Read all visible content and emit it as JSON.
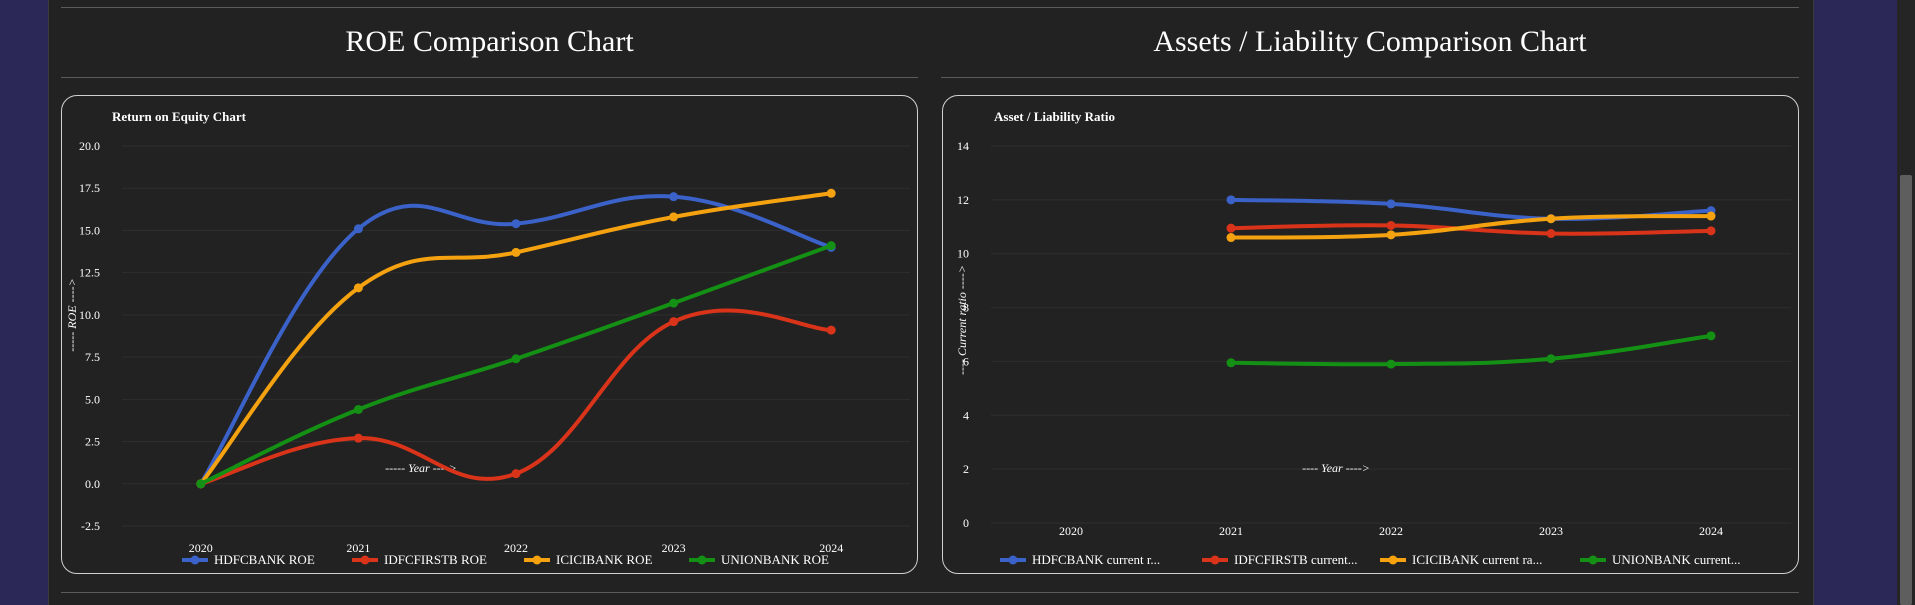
{
  "sections": [
    {
      "heading": "ROE Comparison Chart"
    },
    {
      "heading": "Assets / Liability Comparison Chart"
    }
  ],
  "chart_data": [
    {
      "type": "line",
      "title": "Return on Equity Chart",
      "xlabel": "----- Year ---->",
      "ylabel": "----- ROE ---->",
      "x": [
        "2020",
        "2021",
        "2022",
        "2023",
        "2024"
      ],
      "ylim": [
        -2.5,
        20
      ],
      "yticks": [
        "20.0",
        "17.5",
        "15.0",
        "12.5",
        "10.0",
        "7.5",
        "5.0",
        "2.5",
        "0.0",
        "-2.5"
      ],
      "grid": true,
      "legend": "bottom",
      "series": [
        {
          "name": "HDFCBANK ROE",
          "color": "#3a62c9",
          "values": [
            0,
            15.1,
            15.4,
            17.0,
            14.0
          ]
        },
        {
          "name": "IDFCFIRSTB ROE",
          "color": "#d9341a",
          "values": [
            0,
            2.7,
            0.6,
            9.6,
            9.1
          ]
        },
        {
          "name": "ICICIBANK ROE",
          "color": "#f5a211",
          "values": [
            0,
            11.6,
            13.7,
            15.8,
            17.2
          ]
        },
        {
          "name": "UNIONBANK ROE",
          "color": "#149014",
          "values": [
            0,
            4.4,
            7.4,
            10.7,
            14.1
          ]
        }
      ]
    },
    {
      "type": "line",
      "title": "Asset / Liability Ratio",
      "xlabel": "---- Year ---->",
      "ylabel": "---- Current ratio ---->",
      "x": [
        "2020",
        "2021",
        "2022",
        "2023",
        "2024"
      ],
      "ylim": [
        0,
        14
      ],
      "yticks": [
        "14",
        "12",
        "10",
        "8",
        "6",
        "4",
        "2",
        "0"
      ],
      "grid": true,
      "legend": "bottom",
      "series": [
        {
          "name": "HDFCBANK current r...",
          "color": "#3a62c9",
          "values": [
            null,
            12.0,
            11.85,
            11.3,
            11.6
          ]
        },
        {
          "name": "IDFCFIRSTB current...",
          "color": "#d9341a",
          "values": [
            null,
            10.95,
            11.05,
            10.75,
            10.85
          ]
        },
        {
          "name": "ICICIBANK current ra...",
          "color": "#f5a211",
          "values": [
            null,
            10.6,
            10.7,
            11.3,
            11.4
          ]
        },
        {
          "name": "UNIONBANK current...",
          "color": "#149014",
          "values": [
            null,
            5.95,
            5.9,
            6.1,
            6.95
          ]
        }
      ]
    }
  ]
}
